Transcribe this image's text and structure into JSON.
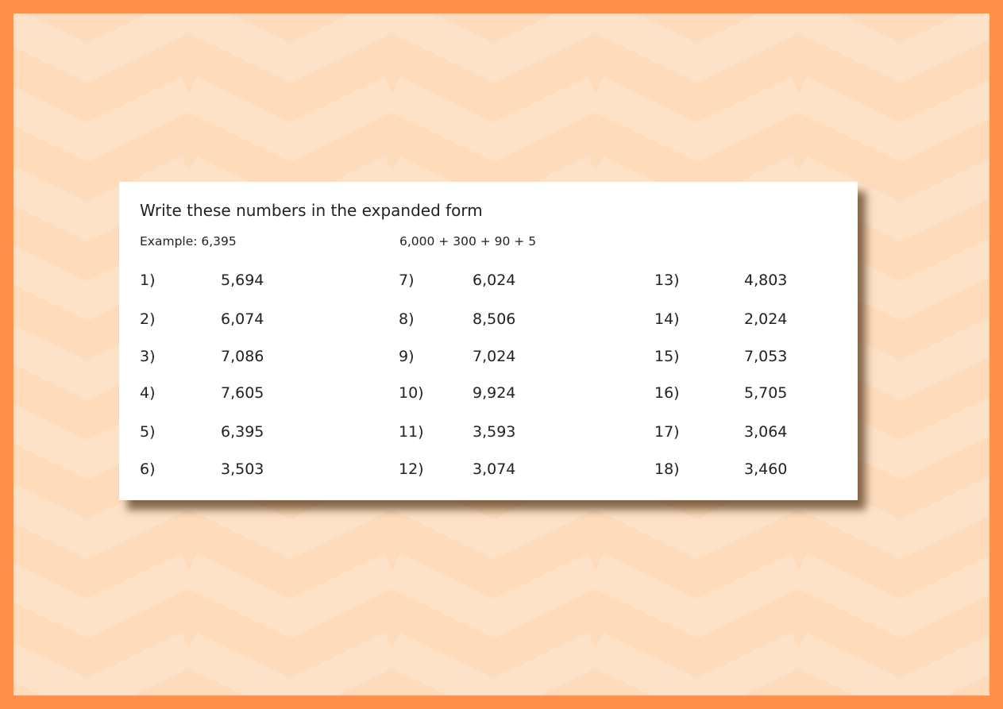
{
  "colors": {
    "border": "#FF914D",
    "band_light": "#FEE2C8",
    "band_dark": "#FDDBBB",
    "card": "#FFFFFF"
  },
  "title": "Write these numbers in the expanded form",
  "example": {
    "label": "Example: 6,395",
    "answer": "6,000 + 300 + 90 + 5"
  },
  "columns": [
    [
      {
        "n": "1)",
        "v": "5,694"
      },
      {
        "n": "2)",
        "v": "6,074"
      },
      {
        "n": "3)",
        "v": "7,086"
      },
      {
        "n": "4)",
        "v": "7,605"
      },
      {
        "n": "5)",
        "v": "6,395"
      },
      {
        "n": "6)",
        "v": "3,503"
      }
    ],
    [
      {
        "n": "7)",
        "v": "6,024"
      },
      {
        "n": "8)",
        "v": "8,506"
      },
      {
        "n": "9)",
        "v": "7,024"
      },
      {
        "n": "10)",
        "v": "9,924"
      },
      {
        "n": "11)",
        "v": "3,593"
      },
      {
        "n": "12)",
        "v": "3,074"
      }
    ],
    [
      {
        "n": "13)",
        "v": "4,803"
      },
      {
        "n": "14)",
        "v": "2,024"
      },
      {
        "n": "15)",
        "v": "7,053"
      },
      {
        "n": "16)",
        "v": "5,705"
      },
      {
        "n": "17)",
        "v": "3,064"
      },
      {
        "n": "18)",
        "v": "3,460"
      }
    ]
  ]
}
